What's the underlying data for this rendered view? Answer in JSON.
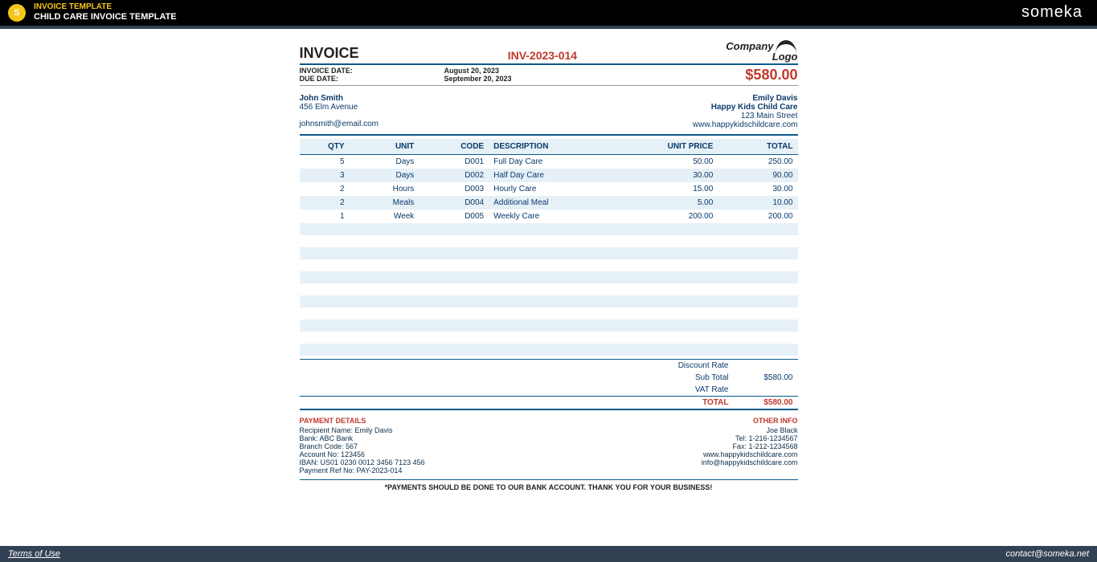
{
  "header": {
    "title1": "INVOICE TEMPLATE",
    "title2": "CHILD CARE INVOICE TEMPLATE",
    "brand": "someka"
  },
  "invoice": {
    "title": "INVOICE",
    "number": "INV-2023-014",
    "logo_text1": "Company",
    "logo_text2": "Logo",
    "invoice_date_label": "INVOICE DATE:",
    "invoice_date": "August 20, 2023",
    "due_date_label": "DUE DATE:",
    "due_date": "September 20, 2023",
    "grand_total": "$580.00"
  },
  "from": {
    "name": "John Smith",
    "addr": "456 Elm Avenue",
    "email": "johnsmith@email.com"
  },
  "to": {
    "name": "Emily Davis",
    "company": "Happy Kids Child Care",
    "addr": "123 Main Street",
    "web": "www.happykidschildcare.com"
  },
  "columns": {
    "qty": "QTY",
    "unit": "UNIT",
    "code": "CODE",
    "desc": "DESCRIPTION",
    "price": "UNIT PRICE",
    "total": "TOTAL"
  },
  "rows": [
    {
      "qty": "5",
      "unit": "Days",
      "code": "D001",
      "desc": "Full Day Care",
      "price": "50.00",
      "total": "250.00"
    },
    {
      "qty": "3",
      "unit": "Days",
      "code": "D002",
      "desc": "Half Day Care",
      "price": "30.00",
      "total": "90.00"
    },
    {
      "qty": "2",
      "unit": "Hours",
      "code": "D003",
      "desc": "Hourly Care",
      "price": "15.00",
      "total": "30.00"
    },
    {
      "qty": "2",
      "unit": "Meals",
      "code": "D004",
      "desc": "Additional Meal",
      "price": "5.00",
      "total": "10.00"
    },
    {
      "qty": "1",
      "unit": "Week",
      "code": "D005",
      "desc": "Weekly Care",
      "price": "200.00",
      "total": "200.00"
    }
  ],
  "totals": {
    "discount_label": "Discount Rate",
    "discount_val": "",
    "subtotal_label": "Sub Total",
    "subtotal_val": "$580.00",
    "vat_label": "VAT Rate",
    "vat_val": "",
    "total_label": "TOTAL",
    "total_val": "$580.00"
  },
  "payment": {
    "header": "PAYMENT DETAILS",
    "recipient": "Recipient Name: Emily Davis",
    "bank": "Bank: ABC Bank",
    "branch": "Branch Code: 567",
    "account": "Account No: 123456",
    "iban": "IBAN: US01 0230 0012 3456 7123 456",
    "ref": "Payment Ref No: PAY-2023-014"
  },
  "other": {
    "header": "OTHER INFO",
    "contact": "Joe Black",
    "tel": "Tel: 1-216-1234567",
    "fax": "Fax: 1-212-1234568",
    "web": "www.happykidschildcare.com",
    "email": "info@happykidschildcare.com"
  },
  "footer_note": "*PAYMENTS SHOULD BE DONE TO OUR BANK ACCOUNT. THANK YOU FOR YOUR BUSINESS!",
  "bottom": {
    "terms": "Terms of Use",
    "contact": "contact@someka.net"
  }
}
